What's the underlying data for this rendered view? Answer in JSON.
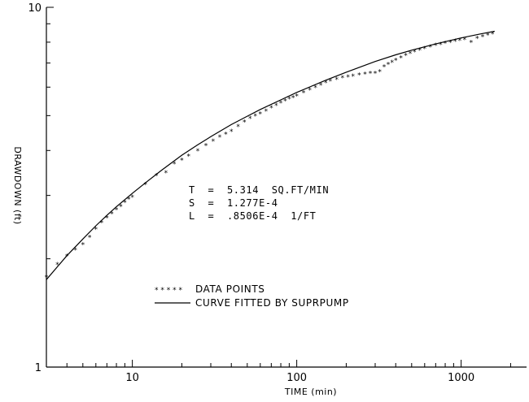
{
  "chart_data": {
    "type": "scatter",
    "xlabel": "TIME (min)",
    "ylabel": "DRAWDOWN (ft)",
    "x_scale": "log",
    "y_scale": "log",
    "xlim": [
      3,
      2500
    ],
    "ylim": [
      1,
      10
    ],
    "x_ticks": [
      10,
      100,
      1000
    ],
    "x_tick_labels": [
      "10",
      "100",
      "1000"
    ],
    "y_ticks": [
      1,
      10
    ],
    "y_tick_labels": [
      "1",
      "10"
    ],
    "grid": false,
    "legend_position": "lower-left",
    "annotations": [
      "T  =  5.314  SQ.FT/MIN",
      "S  =  1.277E-4",
      "L  =  .8506E-4  1/FT"
    ],
    "series": [
      {
        "name": "DATA POINTS",
        "marker": "*",
        "x": [
          3.0,
          3.5,
          4.0,
          4.5,
          5.0,
          5.5,
          6.0,
          6.5,
          7.0,
          7.5,
          8.0,
          8.5,
          9.0,
          9.5,
          10.0,
          12.0,
          14.0,
          16.0,
          18.0,
          20.0,
          22.0,
          25.0,
          28.0,
          31.0,
          34.0,
          37.0,
          40.0,
          44.0,
          48.0,
          52.0,
          56.0,
          60.0,
          65.0,
          70.0,
          75.0,
          80.0,
          85.0,
          90.0,
          95.0,
          100.0,
          110.0,
          120.0,
          130.0,
          140.0,
          150.0,
          160.0,
          175.0,
          190.0,
          205.0,
          220.0,
          240.0,
          260.0,
          280.0,
          300.0,
          320.0,
          340.0,
          360.0,
          380.0,
          400.0,
          430.0,
          460.0,
          490.0,
          520.0,
          560.0,
          600.0,
          650.0,
          700.0,
          750.0,
          800.0,
          860.0,
          920.0,
          980.0,
          1050.0,
          1150.0,
          1250.0,
          1350.0,
          1450.0,
          1550.0
        ],
        "y": [
          1.78,
          1.93,
          2.04,
          2.12,
          2.19,
          2.3,
          2.42,
          2.52,
          2.6,
          2.67,
          2.74,
          2.8,
          2.87,
          2.93,
          2.97,
          3.22,
          3.41,
          3.47,
          3.68,
          3.76,
          3.86,
          4.0,
          4.13,
          4.25,
          4.36,
          4.45,
          4.53,
          4.67,
          4.8,
          4.92,
          4.99,
          5.06,
          5.16,
          5.26,
          5.35,
          5.43,
          5.5,
          5.57,
          5.62,
          5.68,
          5.79,
          5.9,
          6.0,
          6.09,
          6.18,
          6.24,
          6.32,
          6.38,
          6.42,
          6.45,
          6.49,
          6.53,
          6.56,
          6.57,
          6.63,
          6.85,
          6.95,
          7.05,
          7.13,
          7.25,
          7.35,
          7.45,
          7.53,
          7.62,
          7.7,
          7.78,
          7.85,
          7.9,
          7.95,
          8.0,
          8.05,
          8.1,
          8.14,
          7.99,
          8.2,
          8.3,
          8.38,
          8.45
        ]
      },
      {
        "name": "CURVE FITTED BY SUPRPUMP",
        "type": "line",
        "x": [
          3,
          3.5,
          4,
          5,
          6,
          7,
          8,
          10,
          12,
          15,
          20,
          25,
          30,
          40,
          50,
          60,
          80,
          100,
          150,
          200,
          300,
          400,
          500,
          700,
          1000,
          1300,
          1600
        ],
        "y": [
          1.75,
          1.9,
          2.04,
          2.27,
          2.47,
          2.64,
          2.79,
          3.04,
          3.25,
          3.52,
          3.88,
          4.15,
          4.37,
          4.72,
          4.98,
          5.2,
          5.53,
          5.8,
          6.27,
          6.6,
          7.07,
          7.38,
          7.6,
          7.91,
          8.22,
          8.43,
          8.58
        ]
      }
    ]
  }
}
